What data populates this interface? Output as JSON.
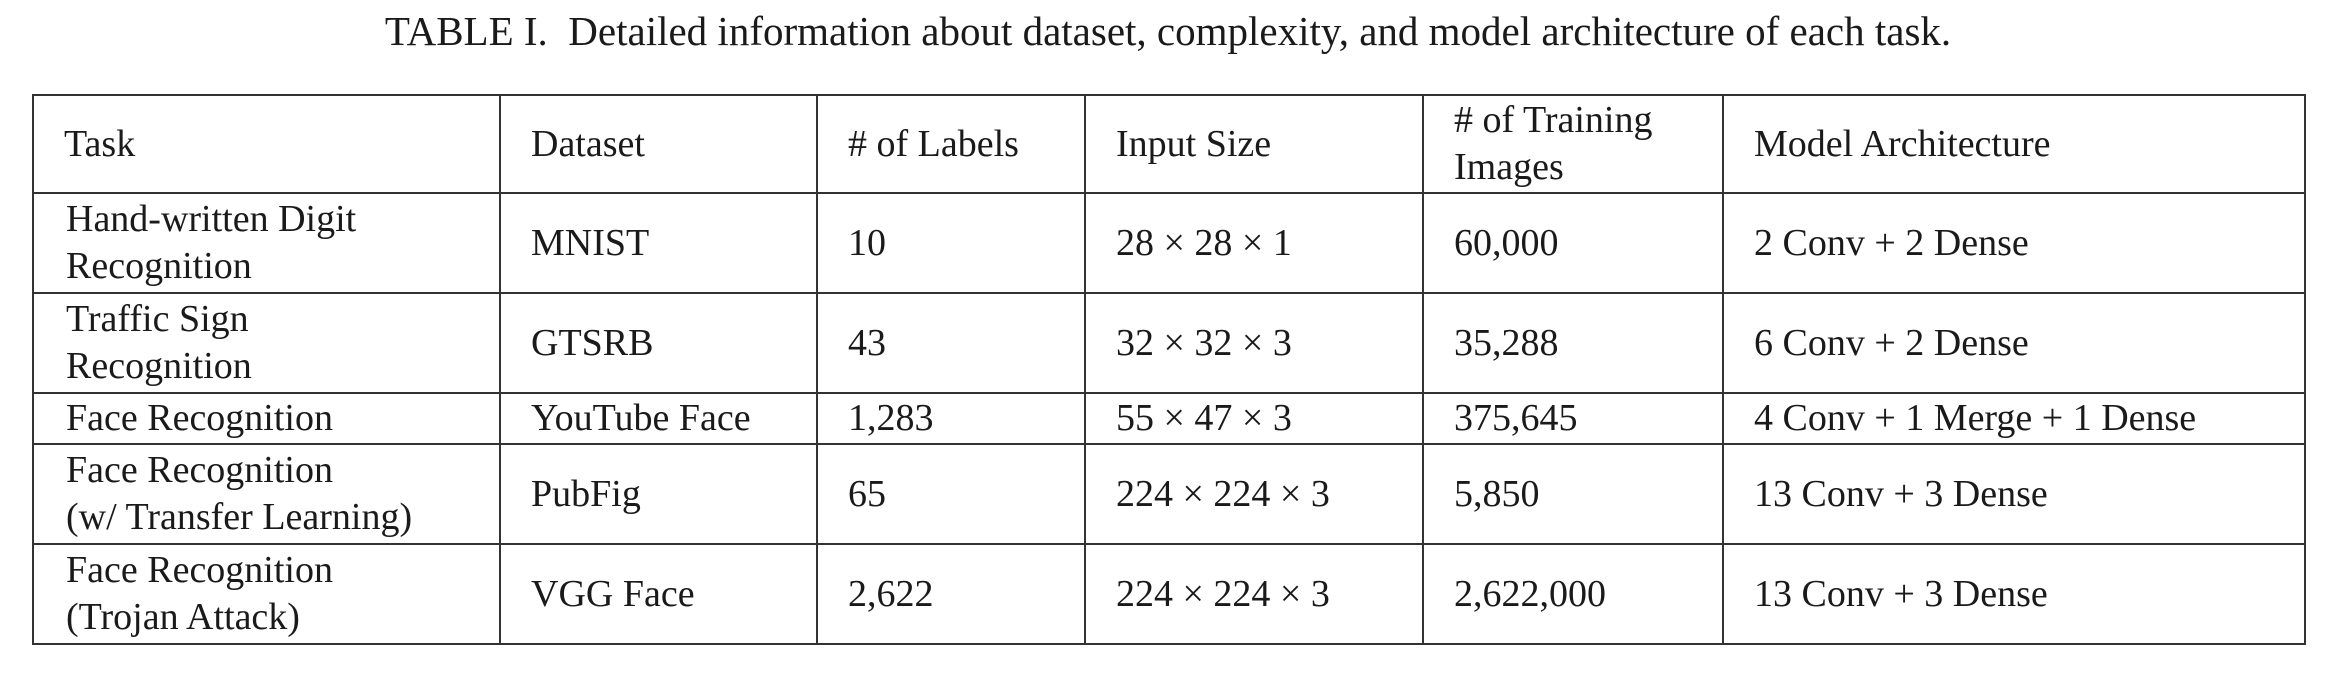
{
  "caption": "TABLE I.  Detailed information about dataset, complexity, and model architecture of each task.",
  "table": {
    "columns": [
      "Task",
      "Dataset",
      "# of Labels",
      "Input Size",
      "# of Training\nImages",
      "Model Architecture"
    ],
    "rows": [
      [
        "Hand-written Digit\nRecognition",
        "MNIST",
        "10",
        "28 × 28 × 1",
        "60,000",
        "2 Conv + 2 Dense"
      ],
      [
        "Traffic Sign\nRecognition",
        "GTSRB",
        "43",
        "32 × 32 × 3",
        "35,288",
        "6 Conv + 2 Dense"
      ],
      [
        "Face Recognition",
        "YouTube Face",
        "1,283",
        "55 × 47 × 3",
        "375,645",
        "4 Conv + 1 Merge + 1 Dense"
      ],
      [
        "Face Recognition\n(w/ Transfer Learning)",
        "PubFig",
        "65",
        "224 × 224 × 3",
        "5,850",
        "13 Conv + 3 Dense"
      ],
      [
        "Face Recognition\n(Trojan Attack)",
        "VGG Face",
        "2,622",
        "224 × 224 × 3",
        "2,622,000",
        "13 Conv + 3 Dense"
      ]
    ]
  }
}
